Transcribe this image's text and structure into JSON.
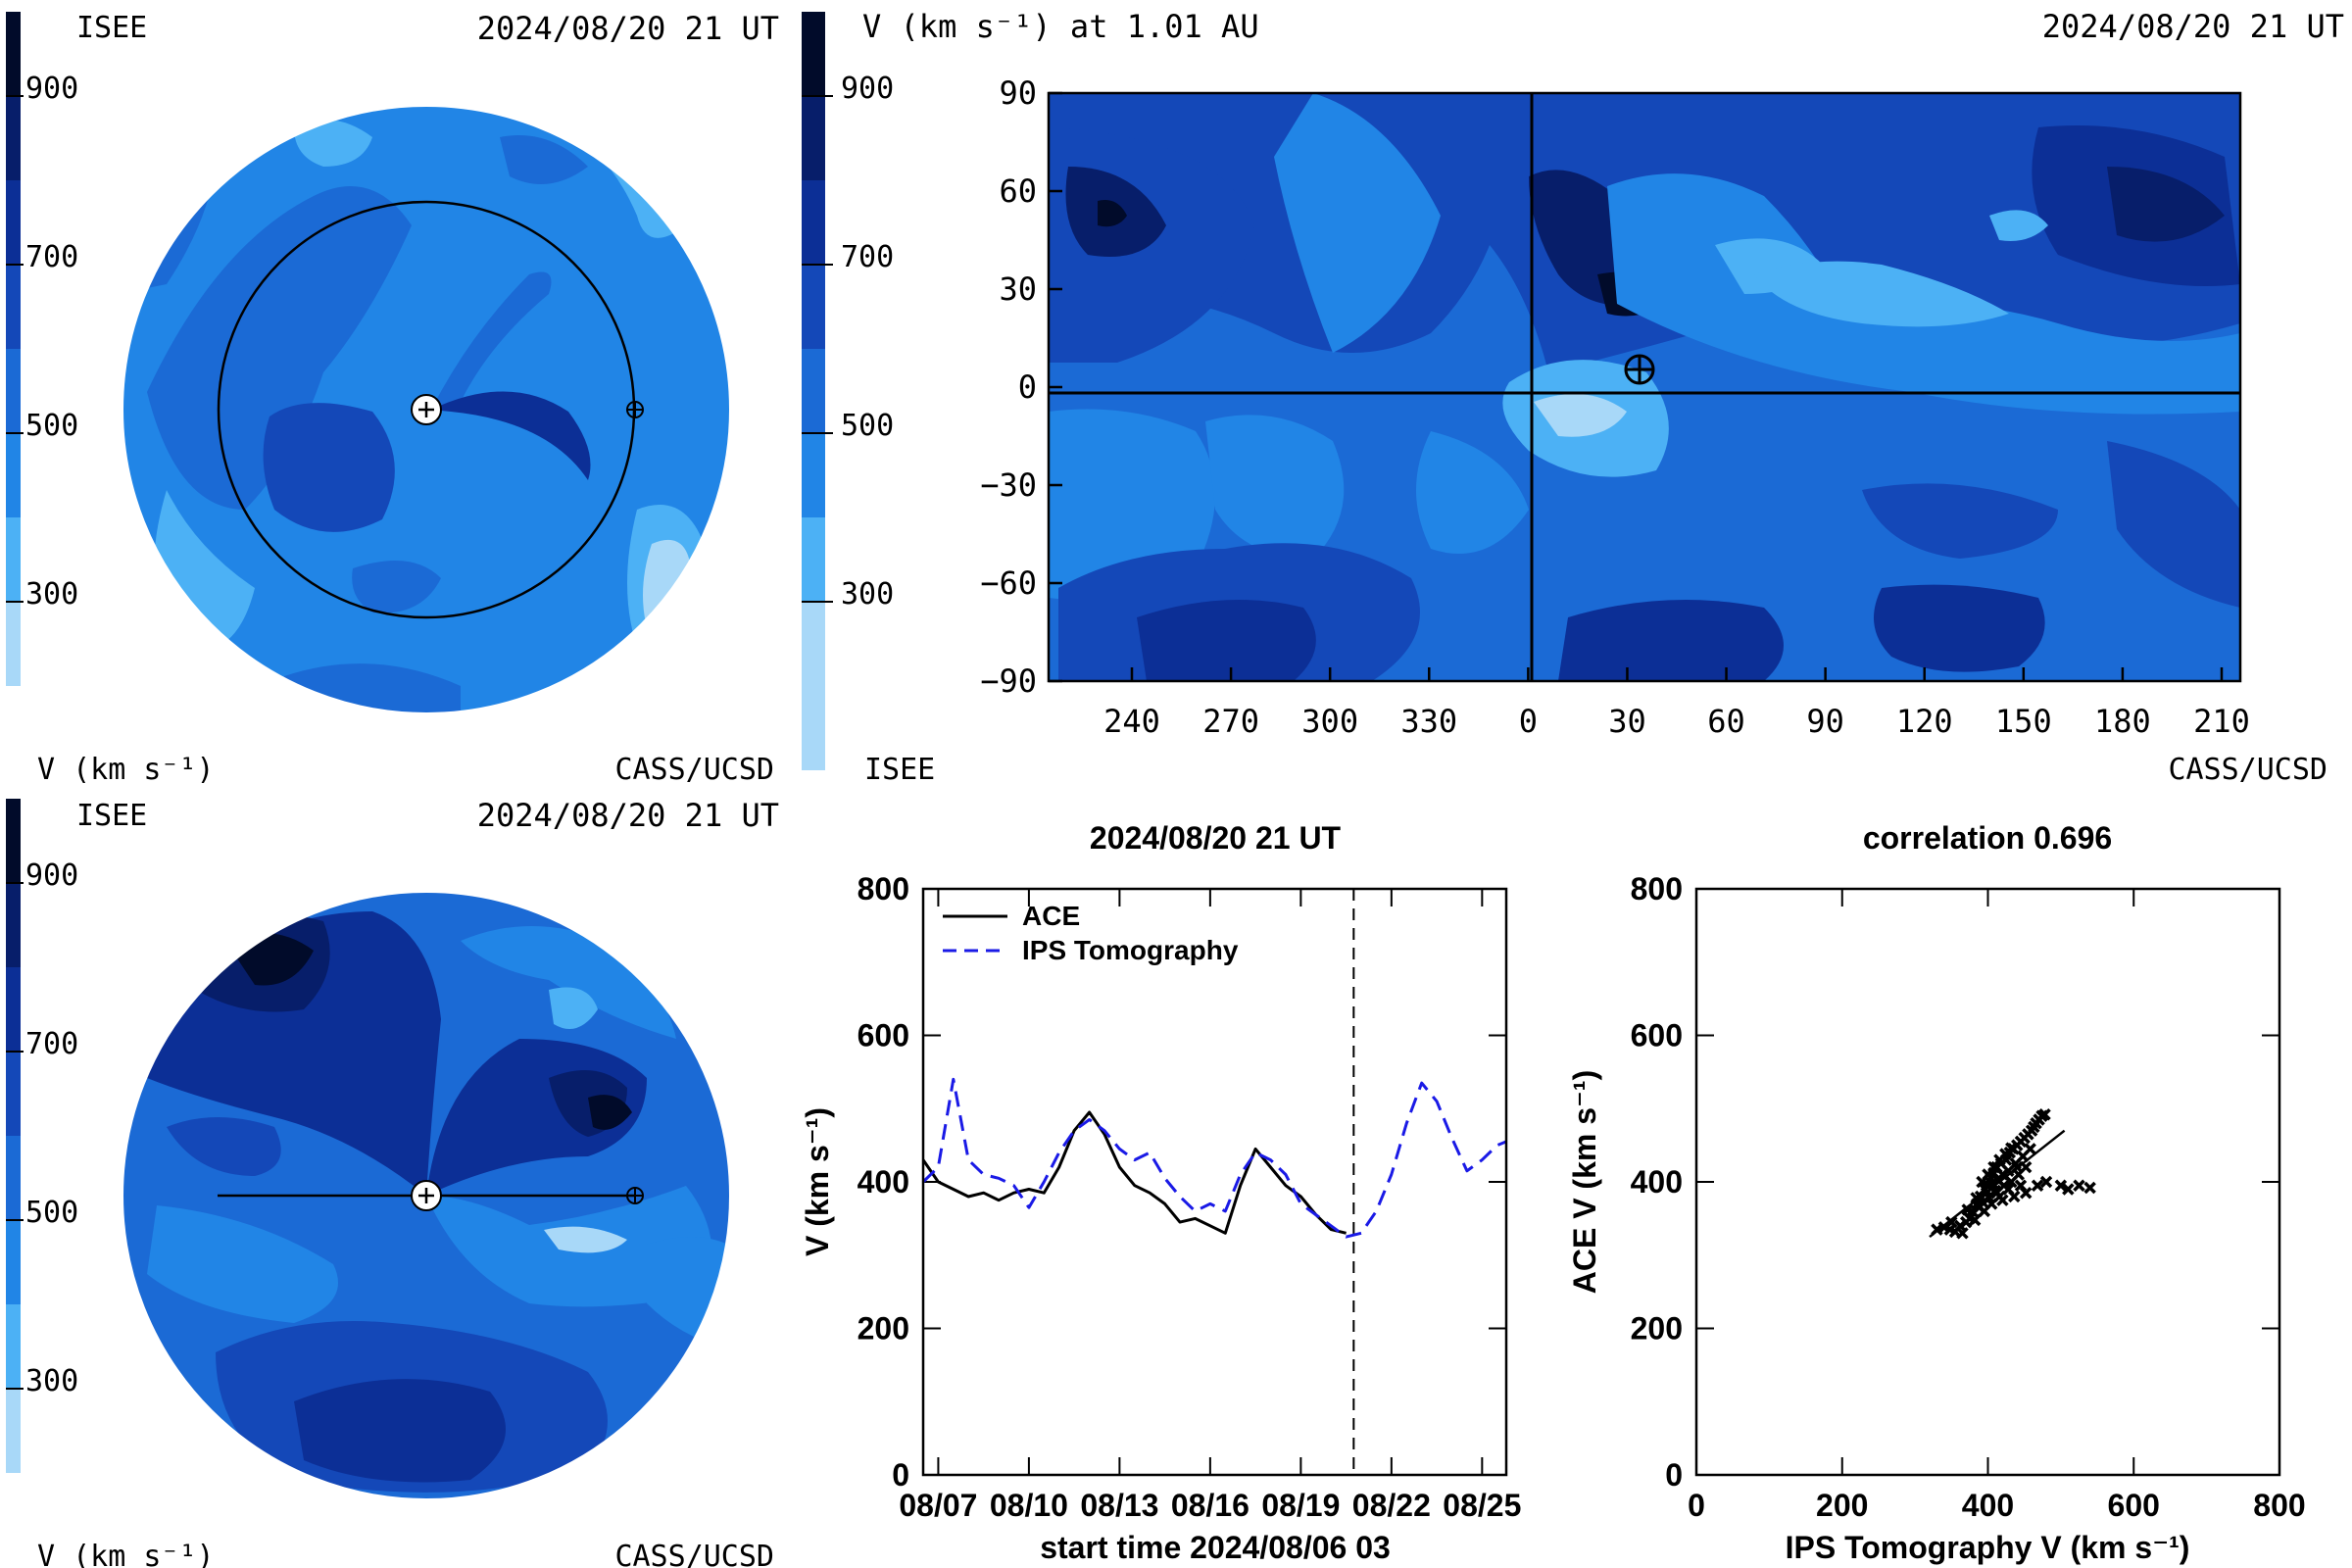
{
  "colors": {
    "v200": "#a8d8f8",
    "v300": "#4cb1f5",
    "v400": "#2185e6",
    "v500": "#1b6ad5",
    "v600": "#1448b8",
    "v700": "#0c2f96",
    "v800": "#071e6a",
    "v900": "#010b2a",
    "ace_line": "#000000",
    "ips_line": "#1a1ae6"
  },
  "colorbar": {
    "ticks": [
      "900",
      "700",
      "500",
      "300"
    ],
    "unit_label": "V (km s⁻¹)"
  },
  "panel_top_left": {
    "org_left": "ISEE",
    "timestamp": "2024/08/20 21 UT",
    "unit_label": "V (km s⁻¹)",
    "credit": "CASS/UCSD"
  },
  "panel_top_right": {
    "title": "V (km s⁻¹) at 1.01 AU",
    "timestamp": "2024/08/20 21 UT",
    "org_left": "ISEE",
    "credit": "CASS/UCSD",
    "earth_symbol": "⊕"
  },
  "panel_bottom_left": {
    "org_left": "ISEE",
    "timestamp": "2024/08/20 21 UT",
    "unit_label": "V (km s⁻¹)",
    "credit": "CASS/UCSD"
  },
  "chart_data": [
    {
      "type": "heatmap",
      "id": "synoptic-map",
      "title": "V (km s⁻¹) at 1.01 AU",
      "x_ticks": [
        "240",
        "270",
        "300",
        "330",
        "0",
        "30",
        "60",
        "90",
        "120",
        "150",
        "180",
        "210"
      ],
      "y_ticks": [
        "90",
        "60",
        "30",
        "0",
        "−30",
        "−60",
        "−90"
      ],
      "ylim": [
        -90,
        90
      ],
      "earth_position": {
        "lon": 32,
        "lat": 7
      },
      "grid": false
    },
    {
      "type": "line",
      "id": "time-series",
      "title": "2024/08/20 21 UT",
      "xlabel": "start time 2024/08/06 03",
      "ylabel": "V (km s⁻¹)",
      "x_ticks": [
        "08/07",
        "08/10",
        "08/13",
        "08/16",
        "08/19",
        "08/22",
        "08/25"
      ],
      "y_ticks": [
        "0",
        "200",
        "400",
        "600",
        "800"
      ],
      "xlim_days": [
        0.5,
        19.8
      ],
      "ylim": [
        0,
        800
      ],
      "now_marker_day": 14.75,
      "legend_position": "top-left",
      "series": [
        {
          "name": "ACE",
          "style": "solid",
          "x": [
            0.5,
            1.0,
            1.5,
            2.0,
            2.5,
            3.0,
            3.5,
            4.0,
            4.5,
            5.0,
            5.5,
            6.0,
            6.5,
            7.0,
            7.5,
            8.0,
            8.5,
            9.0,
            9.5,
            10.0,
            10.5,
            11.0,
            11.5,
            12.0,
            12.5,
            13.0,
            13.5,
            14.0,
            14.5
          ],
          "values": [
            430,
            400,
            390,
            380,
            385,
            375,
            385,
            390,
            385,
            420,
            470,
            495,
            465,
            420,
            395,
            385,
            370,
            345,
            350,
            340,
            330,
            395,
            445,
            420,
            395,
            380,
            355,
            335,
            330
          ]
        },
        {
          "name": "IPS Tomography",
          "style": "dashed",
          "x": [
            0.5,
            1.0,
            1.5,
            2.0,
            2.5,
            3.0,
            3.5,
            4.0,
            4.5,
            5.0,
            5.5,
            6.0,
            6.5,
            7.0,
            7.5,
            8.0,
            8.5,
            9.0,
            9.5,
            10.0,
            10.5,
            11.0,
            11.5,
            12.0,
            12.5,
            13.0,
            13.5,
            14.0,
            14.5,
            15.0,
            15.5,
            16.0,
            16.5,
            17.0,
            17.5,
            18.0,
            18.5,
            19.0,
            19.5,
            19.8
          ],
          "values": [
            400,
            420,
            540,
            430,
            410,
            405,
            395,
            365,
            400,
            440,
            470,
            485,
            470,
            445,
            430,
            440,
            405,
            380,
            360,
            370,
            360,
            410,
            440,
            430,
            410,
            370,
            355,
            340,
            325,
            330,
            360,
            410,
            480,
            535,
            510,
            460,
            415,
            430,
            450,
            455
          ]
        }
      ]
    },
    {
      "type": "scatter",
      "id": "correlation-scatter",
      "title": "correlation 0.696",
      "xlabel": "IPS Tomography V (km s⁻¹)",
      "ylabel": "ACE V (km s⁻¹)",
      "x_ticks": [
        "0",
        "200",
        "400",
        "600",
        "800"
      ],
      "y_ticks": [
        "0",
        "200",
        "400",
        "600",
        "800"
      ],
      "xlim": [
        0,
        800
      ],
      "ylim": [
        0,
        800
      ],
      "fit_line": {
        "x": [
          320,
          505
        ],
        "y": [
          325,
          470
        ]
      },
      "points": [
        [
          330,
          335
        ],
        [
          340,
          338
        ],
        [
          348,
          335
        ],
        [
          355,
          332
        ],
        [
          362,
          340
        ],
        [
          365,
          330
        ],
        [
          370,
          345
        ],
        [
          375,
          350
        ],
        [
          378,
          360
        ],
        [
          382,
          348
        ],
        [
          385,
          370
        ],
        [
          388,
          365
        ],
        [
          390,
          380
        ],
        [
          393,
          372
        ],
        [
          396,
          390
        ],
        [
          398,
          385
        ],
        [
          400,
          395
        ],
        [
          402,
          378
        ],
        [
          404,
          405
        ],
        [
          406,
          398
        ],
        [
          408,
          412
        ],
        [
          410,
          388
        ],
        [
          412,
          420
        ],
        [
          414,
          402
        ],
        [
          416,
          380
        ],
        [
          418,
          425
        ],
        [
          420,
          410
        ],
        [
          422,
          395
        ],
        [
          425,
          430
        ],
        [
          428,
          415
        ],
        [
          430,
          440
        ],
        [
          432,
          400
        ],
        [
          435,
          445
        ],
        [
          438,
          425
        ],
        [
          440,
          450
        ],
        [
          442,
          410
        ],
        [
          445,
          455
        ],
        [
          448,
          435
        ],
        [
          450,
          460
        ],
        [
          452,
          420
        ],
        [
          455,
          465
        ],
        [
          458,
          445
        ],
        [
          460,
          470
        ],
        [
          463,
          475
        ],
        [
          466,
          480
        ],
        [
          470,
          485
        ],
        [
          474,
          490
        ],
        [
          478,
          492
        ],
        [
          395,
          360
        ],
        [
          405,
          370
        ],
        [
          412,
          385
        ],
        [
          420,
          375
        ],
        [
          428,
          390
        ],
        [
          436,
          380
        ],
        [
          445,
          395
        ],
        [
          452,
          385
        ],
        [
          468,
          395
        ],
        [
          480,
          400
        ],
        [
          500,
          395
        ],
        [
          510,
          390
        ],
        [
          525,
          395
        ],
        [
          540,
          392
        ],
        [
          372,
          362
        ],
        [
          384,
          378
        ],
        [
          392,
          400
        ],
        [
          400,
          410
        ],
        [
          408,
          420
        ],
        [
          416,
          430
        ],
        [
          424,
          438
        ],
        [
          432,
          446
        ],
        [
          440,
          420
        ],
        [
          350,
          345
        ]
      ]
    }
  ]
}
